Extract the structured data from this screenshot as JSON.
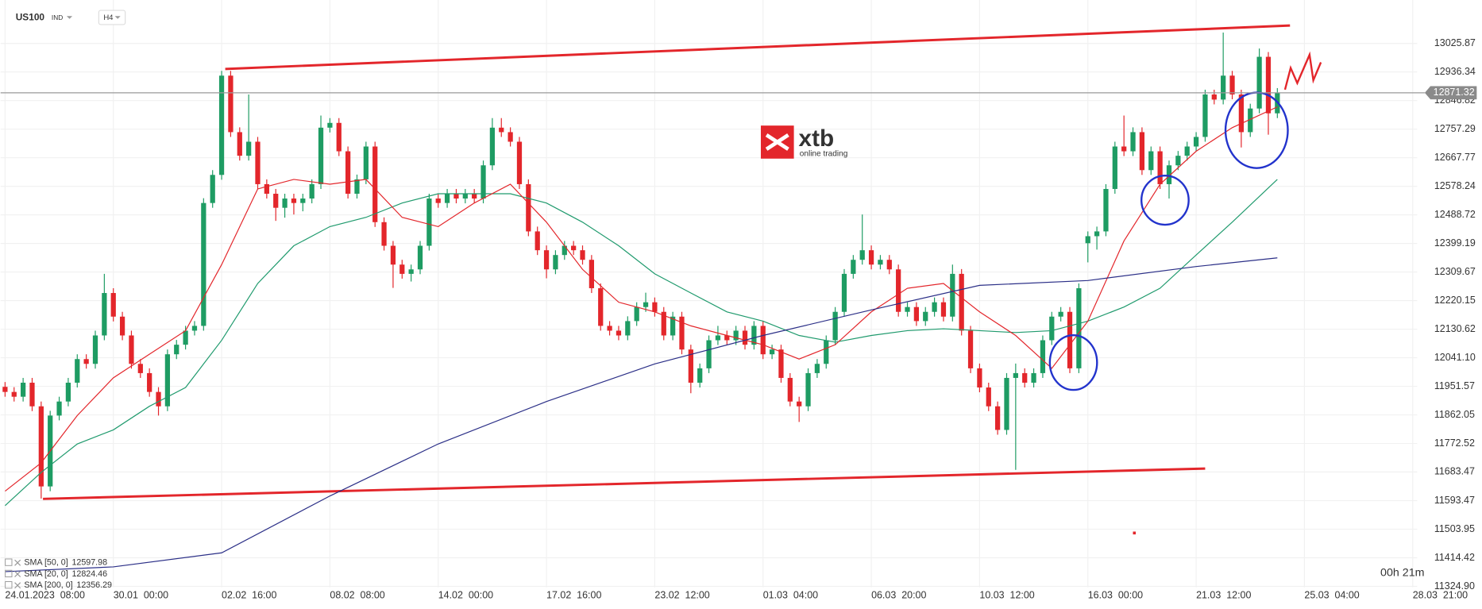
{
  "toolbar": {
    "symbol": "US100",
    "market": "IND",
    "interval": "H4"
  },
  "logo": {
    "name": "xtb",
    "tagline": "online trading"
  },
  "countdown": "00h 21m",
  "chart_data": {
    "type": "candlestick",
    "up_color": "#1e9c63",
    "down_color": "#e3262b",
    "grid": true,
    "xlim": [
      -0.5,
      156.5
    ],
    "xticks": [
      {
        "value": 0,
        "label": "24.01.2023  08:00"
      },
      {
        "value": 12,
        "label": "30.01  00:00"
      },
      {
        "value": 24,
        "label": "02.02  16:00"
      },
      {
        "value": 36,
        "label": "08.02  08:00"
      },
      {
        "value": 48,
        "label": "14.02  00:00"
      },
      {
        "value": 60,
        "label": "17.02  16:00"
      },
      {
        "value": 72,
        "label": "23.02  12:00"
      },
      {
        "value": 84,
        "label": "01.03  04:00"
      },
      {
        "value": 96,
        "label": "06.03  20:00"
      },
      {
        "value": 108,
        "label": "10.03  12:00"
      },
      {
        "value": 120,
        "label": "16.03  00:00"
      },
      {
        "value": 132,
        "label": "21.03  12:00"
      },
      {
        "value": 144,
        "label": "25.03  04:00"
      },
      {
        "value": 156,
        "label": "28.03  21:00"
      }
    ],
    "ylim": [
      11322,
      13162
    ],
    "yticks": [
      13025.87,
      12936.34,
      12846.82,
      12757.29,
      12667.77,
      12578.24,
      12488.72,
      12399.19,
      12309.67,
      12220.15,
      12130.62,
      {
        "value": 12041.1,
        "label": "12041.10"
      },
      11951.57,
      11862.05,
      11772.52,
      11683.47,
      11593.47,
      11503.95,
      11414.42,
      {
        "value": 11324.9,
        "label": "11324.90"
      }
    ],
    "last_price": 12871.32,
    "candles": [
      [
        11950,
        11965,
        11919,
        11934
      ],
      [
        11934,
        11949,
        11904,
        11919
      ],
      [
        11919,
        11978,
        11904,
        11963
      ],
      [
        11963,
        11978,
        11874,
        11889
      ],
      [
        11889,
        11904,
        11600,
        11638
      ],
      [
        11638,
        11875,
        11623,
        11860
      ],
      [
        11860,
        11919,
        11845,
        11904
      ],
      [
        11904,
        11978,
        11889,
        11963
      ],
      [
        11963,
        12052,
        11948,
        12037
      ],
      [
        12037,
        12052,
        12007,
        12022
      ],
      [
        12022,
        12126,
        12007,
        12111
      ],
      [
        12111,
        12304,
        12096,
        12244
      ],
      [
        12244,
        12259,
        12155,
        12170
      ],
      [
        12170,
        12185,
        12096,
        12111
      ],
      [
        12111,
        12126,
        12007,
        12022
      ],
      [
        12022,
        12037,
        11978,
        11993
      ],
      [
        11993,
        12008,
        11919,
        11934
      ],
      [
        11934,
        11949,
        11860,
        11889
      ],
      [
        11889,
        12067,
        11874,
        12052
      ],
      [
        12052,
        12097,
        12037,
        12082
      ],
      [
        12082,
        12141,
        12067,
        12126
      ],
      [
        12126,
        12156,
        12111,
        12141
      ],
      [
        12141,
        12541,
        12126,
        12526
      ],
      [
        12526,
        12629,
        12511,
        12614
      ],
      [
        12614,
        12940,
        12599,
        12925
      ],
      [
        12925,
        12940,
        12733,
        12748
      ],
      [
        12748,
        12763,
        12659,
        12674
      ],
      [
        12674,
        12866,
        12659,
        12718
      ],
      [
        12718,
        12733,
        12570,
        12585
      ],
      [
        12585,
        12600,
        12540,
        12555
      ],
      [
        12555,
        12570,
        12470,
        12511
      ],
      [
        12511,
        12555,
        12480,
        12540
      ],
      [
        12540,
        12555,
        12490,
        12526
      ],
      [
        12526,
        12555,
        12500,
        12540
      ],
      [
        12540,
        12600,
        12525,
        12585
      ],
      [
        12585,
        12800,
        12570,
        12762
      ],
      [
        12762,
        12792,
        12747,
        12777
      ],
      [
        12777,
        12792,
        12673,
        12688
      ],
      [
        12688,
        12703,
        12540,
        12555
      ],
      [
        12555,
        12615,
        12540,
        12600
      ],
      [
        12600,
        12718,
        12585,
        12703
      ],
      [
        12703,
        12718,
        12451,
        12466
      ],
      [
        12466,
        12481,
        12377,
        12392
      ],
      [
        12392,
        12407,
        12260,
        12333
      ],
      [
        12333,
        12348,
        12289,
        12304
      ],
      [
        12304,
        12333,
        12280,
        12318
      ],
      [
        12318,
        12407,
        12303,
        12392
      ],
      [
        12392,
        12555,
        12377,
        12540
      ],
      [
        12540,
        12555,
        12511,
        12526
      ],
      [
        12526,
        12570,
        12511,
        12555
      ],
      [
        12555,
        12570,
        12525,
        12540
      ],
      [
        12540,
        12570,
        12525,
        12555
      ],
      [
        12555,
        12570,
        12525,
        12540
      ],
      [
        12540,
        12659,
        12525,
        12644
      ],
      [
        12644,
        12792,
        12629,
        12762
      ],
      [
        12762,
        12792,
        12733,
        12748
      ],
      [
        12748,
        12763,
        12703,
        12718
      ],
      [
        12718,
        12733,
        12570,
        12585
      ],
      [
        12585,
        12600,
        12422,
        12437
      ],
      [
        12437,
        12452,
        12363,
        12378
      ],
      [
        12378,
        12393,
        12290,
        12318
      ],
      [
        12318,
        12378,
        12303,
        12363
      ],
      [
        12363,
        12407,
        12348,
        12392
      ],
      [
        12392,
        12407,
        12363,
        12378
      ],
      [
        12378,
        12393,
        12333,
        12348
      ],
      [
        12348,
        12363,
        12244,
        12259
      ],
      [
        12259,
        12274,
        12126,
        12141
      ],
      [
        12141,
        12156,
        12111,
        12126
      ],
      [
        12126,
        12141,
        12096,
        12111
      ],
      [
        12111,
        12171,
        12096,
        12156
      ],
      [
        12156,
        12215,
        12141,
        12200
      ],
      [
        12200,
        12245,
        12185,
        12215
      ],
      [
        12215,
        12230,
        12170,
        12185
      ],
      [
        12185,
        12200,
        12096,
        12111
      ],
      [
        12111,
        12185,
        12096,
        12170
      ],
      [
        12170,
        12185,
        12052,
        12067
      ],
      [
        12067,
        12082,
        11930,
        11963
      ],
      [
        11963,
        12023,
        11948,
        12008
      ],
      [
        12008,
        12111,
        11993,
        12096
      ],
      [
        12096,
        12141,
        12081,
        12111
      ],
      [
        12111,
        12126,
        12081,
        12096
      ],
      [
        12096,
        12141,
        12081,
        12126
      ],
      [
        12126,
        12141,
        12067,
        12082
      ],
      [
        12082,
        12156,
        12067,
        12141
      ],
      [
        12141,
        12156,
        12037,
        12052
      ],
      [
        12052,
        12082,
        12037,
        12067
      ],
      [
        12067,
        12082,
        11963,
        11978
      ],
      [
        11978,
        11993,
        11889,
        11904
      ],
      [
        11904,
        11919,
        11840,
        11889
      ],
      [
        11889,
        12008,
        11874,
        11993
      ],
      [
        11993,
        12037,
        11978,
        12022
      ],
      [
        12022,
        12111,
        12007,
        12096
      ],
      [
        12096,
        12200,
        12081,
        12185
      ],
      [
        12185,
        12319,
        12170,
        12304
      ],
      [
        12304,
        12363,
        12289,
        12348
      ],
      [
        12348,
        12490,
        12333,
        12378
      ],
      [
        12378,
        12393,
        12318,
        12333
      ],
      [
        12333,
        12363,
        12318,
        12348
      ],
      [
        12348,
        12363,
        12303,
        12318
      ],
      [
        12318,
        12333,
        12170,
        12185
      ],
      [
        12185,
        12215,
        12170,
        12200
      ],
      [
        12200,
        12215,
        12141,
        12156
      ],
      [
        12156,
        12200,
        12141,
        12185
      ],
      [
        12185,
        12230,
        12170,
        12215
      ],
      [
        12215,
        12230,
        12155,
        12170
      ],
      [
        12170,
        12333,
        12155,
        12304
      ],
      [
        12304,
        12319,
        12111,
        12126
      ],
      [
        12126,
        12141,
        11993,
        12008
      ],
      [
        12008,
        12023,
        11933,
        11948
      ],
      [
        11948,
        11963,
        11874,
        11889
      ],
      [
        11889,
        11904,
        11800,
        11815
      ],
      [
        11815,
        11993,
        11800,
        11978
      ],
      [
        11978,
        12023,
        11690,
        11993
      ],
      [
        11993,
        12008,
        11948,
        11963
      ],
      [
        11963,
        12008,
        11948,
        11993
      ],
      [
        11993,
        12111,
        11978,
        12096
      ],
      [
        12096,
        12185,
        12081,
        12170
      ],
      [
        12170,
        12200,
        12155,
        12185
      ],
      [
        12185,
        12200,
        11993,
        12008
      ],
      [
        12008,
        12274,
        11993,
        12259
      ],
      [
        12400,
        12437,
        12340,
        12422
      ],
      [
        12422,
        12452,
        12380,
        12437
      ],
      [
        12437,
        12585,
        12422,
        12570
      ],
      [
        12570,
        12718,
        12555,
        12703
      ],
      [
        12703,
        12800,
        12673,
        12688
      ],
      [
        12688,
        12763,
        12673,
        12748
      ],
      [
        12748,
        12763,
        12614,
        12629
      ],
      [
        12629,
        12703,
        12614,
        12688
      ],
      [
        12688,
        12703,
        12570,
        12585
      ],
      [
        12585,
        12659,
        12540,
        12644
      ],
      [
        12644,
        12689,
        12629,
        12674
      ],
      [
        12674,
        12718,
        12659,
        12703
      ],
      [
        12703,
        12748,
        12688,
        12733
      ],
      [
        12733,
        12881,
        12718,
        12866
      ],
      [
        12866,
        12881,
        12835,
        12850
      ],
      [
        12850,
        13060,
        12835,
        12925
      ],
      [
        12925,
        12940,
        12851,
        12866
      ],
      [
        12866,
        12881,
        12700,
        12748
      ],
      [
        12748,
        12837,
        12733,
        12822
      ],
      [
        12822,
        13010,
        12807,
        12984
      ],
      [
        12984,
        12999,
        12740,
        12807
      ],
      [
        12807,
        12886,
        12792,
        12871
      ]
    ],
    "indicators": [
      {
        "name": "SMA [50, 0]",
        "last": 12597.98,
        "color": "#1f9a6d",
        "x": [
          0,
          4,
          8,
          12,
          16,
          20,
          24,
          28,
          32,
          36,
          40,
          44,
          48,
          52,
          56,
          60,
          64,
          68,
          72,
          76,
          80,
          84,
          88,
          92,
          96,
          100,
          104,
          108,
          112,
          116,
          120,
          124,
          128,
          132,
          136,
          141
        ],
        "values": [
          11578,
          11682,
          11771,
          11815,
          11889,
          11948,
          12096,
          12274,
          12392,
          12452,
          12481,
          12526,
          12555,
          12555,
          12555,
          12526,
          12466,
          12392,
          12304,
          12244,
          12185,
          12156,
          12111,
          12090,
          12111,
          12126,
          12132,
          12126,
          12120,
          12126,
          12156,
          12200,
          12259,
          12363,
          12466,
          12600
        ]
      },
      {
        "name": "SMA [20, 0]",
        "last": 12824.46,
        "color": "#e3262b",
        "x": [
          0,
          4,
          8,
          12,
          16,
          20,
          24,
          28,
          32,
          36,
          40,
          44,
          48,
          52,
          56,
          60,
          64,
          68,
          72,
          76,
          80,
          84,
          88,
          92,
          96,
          100,
          104,
          108,
          112,
          116,
          120,
          124,
          128,
          132,
          136,
          141
        ],
        "values": [
          11623,
          11712,
          11860,
          11978,
          12052,
          12126,
          12333,
          12570,
          12600,
          12585,
          12600,
          12481,
          12452,
          12526,
          12585,
          12466,
          12318,
          12215,
          12185,
          12141,
          12111,
          12082,
          12037,
          12082,
          12185,
          12259,
          12274,
          12185,
          12111,
          12008,
          12156,
          12407,
          12585,
          12688,
          12762,
          12827
        ]
      },
      {
        "name": "SMA [200, 0]",
        "last": 12356.29,
        "color": "#2b2f87",
        "x": [
          0,
          12,
          24,
          36,
          48,
          60,
          72,
          84,
          96,
          108,
          120,
          132,
          141
        ],
        "values": [
          11371,
          11386,
          11430,
          11608,
          11771,
          11904,
          12022,
          12111,
          12191,
          12268,
          12283,
          12327,
          12354
        ]
      }
    ],
    "trendlines": [
      {
        "color": "#e3262b",
        "x": [
          24.4,
          142.4
        ],
        "values": [
          12946,
          13082
        ]
      },
      {
        "color": "#e3262b",
        "x": [
          4.2,
          133
        ],
        "values": [
          11599,
          11694
        ]
      }
    ]
  }
}
